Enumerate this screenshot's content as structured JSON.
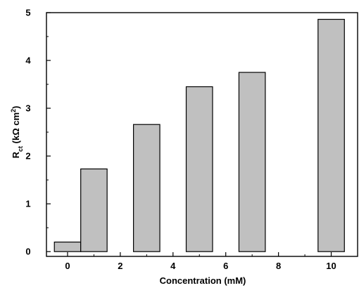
{
  "chart_data": {
    "type": "bar",
    "xlabel": "Concentration (mM)",
    "ylabel": {
      "base": "R",
      "subscript": "ct",
      "units_open": " (kΩ cm",
      "superscript": "2",
      "units_close": ")"
    },
    "x_values": [
      0,
      1,
      3,
      5,
      7,
      10
    ],
    "values": [
      0.2,
      1.73,
      2.66,
      3.45,
      3.75,
      4.86
    ],
    "xlim": [
      -0.8,
      11
    ],
    "ylim": [
      -0.1,
      5
    ],
    "x_ticks": [
      0,
      2,
      4,
      6,
      8,
      10
    ],
    "y_ticks": [
      0,
      1,
      2,
      3,
      4,
      5
    ],
    "bar_width_data": 1.0,
    "bar_color": "#c0c0c0",
    "bar_edge_color": "#000000",
    "grid": false,
    "legend": "none"
  }
}
